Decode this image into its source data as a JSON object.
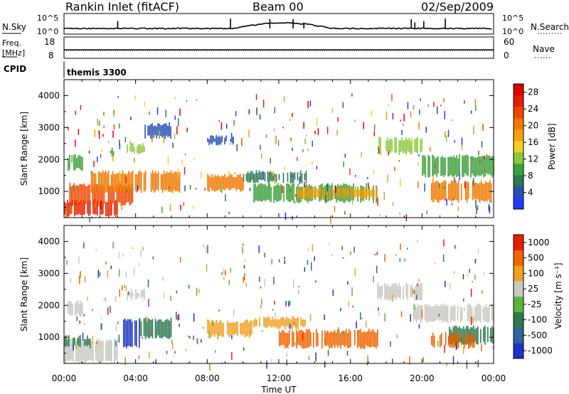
{
  "header": {
    "station": "Rankin Inlet (fitACF)",
    "beam": "Beam 00",
    "date": "02/Sep/2009"
  },
  "aux_panels": {
    "nsky_label": "N.Sky",
    "nsearch_label": "N.Search",
    "noise_ticks": [
      "10^5",
      "10^0"
    ],
    "freq_label": "Freq.",
    "freq_unit": "[MHz]",
    "freq_ticks": [
      "18",
      "8"
    ],
    "nave_label": "Nave",
    "nave_ticks": [
      "60",
      "0"
    ],
    "cpid_label": "CPID",
    "cpid_value": "themis 3300"
  },
  "chart_data": [
    {
      "type": "heatmap",
      "name": "power-panel",
      "title": "",
      "xlabel": "Time UT",
      "ylabel": "Slant Range [km]",
      "xlim": [
        0,
        24
      ],
      "ylim": [
        180,
        4500
      ],
      "x_tick_labels": [
        "00:00",
        "04:00",
        "08:00",
        "12:00",
        "16:00",
        "20:00",
        "00:00"
      ],
      "y_tick_labels": [
        "1000",
        "2000",
        "3000",
        "4000"
      ],
      "y_ticks": [
        1000,
        2000,
        3000,
        4000
      ],
      "colorbar": {
        "label": "Power [dB]",
        "range": [
          0,
          30
        ],
        "tick_labels": [
          "4",
          "8",
          "12",
          "16",
          "20",
          "24",
          "28"
        ],
        "colors": [
          "#1e3cff",
          "#2650b4",
          "#2e7850",
          "#3ca03c",
          "#8cc83c",
          "#f0d020",
          "#f5a010",
          "#f07800",
          "#f04600",
          "#e61e00",
          "#dc0000"
        ]
      },
      "regions": [
        {
          "t": [
            0.0,
            3.0
          ],
          "r": [
            250,
            700
          ],
          "color": "#e61e00"
        },
        {
          "t": [
            0.3,
            3.8
          ],
          "r": [
            600,
            1200
          ],
          "color": "#f04600"
        },
        {
          "t": [
            1.5,
            6.5
          ],
          "r": [
            1000,
            1600
          ],
          "color": "#f07800"
        },
        {
          "t": [
            0.2,
            1.0
          ],
          "r": [
            1700,
            2100
          ],
          "color": "#3ca03c"
        },
        {
          "t": [
            2.5,
            3.0
          ],
          "r": [
            2150,
            2300
          ],
          "color": "#3ca03c"
        },
        {
          "t": [
            3.5,
            4.5
          ],
          "r": [
            2200,
            2450
          ],
          "color": "#8cc83c"
        },
        {
          "t": [
            4.5,
            6.0
          ],
          "r": [
            2700,
            3100
          ],
          "color": "#2650b4"
        },
        {
          "t": [
            8.0,
            10.0
          ],
          "r": [
            1050,
            1500
          ],
          "color": "#f07800"
        },
        {
          "t": [
            10.0,
            13.5
          ],
          "r": [
            1300,
            1600
          ],
          "color": "#2e7850"
        },
        {
          "t": [
            10.5,
            17.5
          ],
          "r": [
            700,
            1200
          ],
          "color": "#3ca03c"
        },
        {
          "t": [
            13.0,
            17.5
          ],
          "r": [
            800,
            1100
          ],
          "color": "#f5a010"
        },
        {
          "t": [
            17.5,
            20.0
          ],
          "r": [
            2200,
            2650
          ],
          "color": "#8cc83c"
        },
        {
          "t": [
            20.0,
            24.0
          ],
          "r": [
            1500,
            2100
          ],
          "color": "#3ca03c"
        },
        {
          "t": [
            20.5,
            24.0
          ],
          "r": [
            700,
            1300
          ],
          "color": "#f07800"
        },
        {
          "t": [
            8.0,
            9.5
          ],
          "r": [
            2500,
            2700
          ],
          "color": "#2650b4"
        }
      ]
    },
    {
      "type": "heatmap",
      "name": "velocity-panel",
      "title": "",
      "xlabel": "Time UT",
      "ylabel": "Slant Range [km]",
      "xlim": [
        0,
        24
      ],
      "ylim": [
        180,
        4500
      ],
      "x_tick_labels": [
        "00:00",
        "04:00",
        "08:00",
        "12:00",
        "16:00",
        "20:00",
        "00:00"
      ],
      "y_tick_labels": [
        "1000",
        "2000",
        "3000",
        "4000"
      ],
      "y_ticks": [
        1000,
        2000,
        3000,
        4000
      ],
      "colorbar": {
        "label": "Velocity [m s⁻¹]",
        "tick_labels": [
          "1000",
          "500",
          "100",
          "25",
          "-25",
          "-100",
          "-500",
          "-1000"
        ],
        "colors": [
          "#1e32c8",
          "#2e64a0",
          "#2e7850",
          "#5ab43c",
          "#c8c8c0",
          "#f0a020",
          "#f06400",
          "#e61e00"
        ]
      },
      "regions": [
        {
          "t": [
            0.0,
            3.0
          ],
          "r": [
            250,
            900
          ],
          "color": "#c8c8c0"
        },
        {
          "t": [
            0.0,
            1.5
          ],
          "r": [
            700,
            1000
          ],
          "color": "#2e7850"
        },
        {
          "t": [
            3.3,
            4.2
          ],
          "r": [
            700,
            1550
          ],
          "color": "#1e32c8"
        },
        {
          "t": [
            4.2,
            6.0
          ],
          "r": [
            1000,
            1550
          ],
          "color": "#2e7850"
        },
        {
          "t": [
            0.2,
            1.0
          ],
          "r": [
            1700,
            2100
          ],
          "color": "#c8c8c0"
        },
        {
          "t": [
            3.5,
            4.5
          ],
          "r": [
            2200,
            2450
          ],
          "color": "#c8c8c0"
        },
        {
          "t": [
            8.0,
            10.5
          ],
          "r": [
            1050,
            1500
          ],
          "color": "#f0a020"
        },
        {
          "t": [
            10.5,
            13.5
          ],
          "r": [
            1300,
            1600
          ],
          "color": "#f0a020"
        },
        {
          "t": [
            12.0,
            17.5
          ],
          "r": [
            700,
            1200
          ],
          "color": "#f06400"
        },
        {
          "t": [
            17.5,
            20.0
          ],
          "r": [
            2200,
            2650
          ],
          "color": "#c8c8c0"
        },
        {
          "t": [
            19.5,
            24.0
          ],
          "r": [
            1500,
            2000
          ],
          "color": "#c8c8c0"
        },
        {
          "t": [
            21.5,
            24.0
          ],
          "r": [
            800,
            1300
          ],
          "color": "#2e7850"
        },
        {
          "t": [
            20.5,
            23.0
          ],
          "r": [
            700,
            1100
          ],
          "color": "#f06400"
        }
      ]
    }
  ]
}
